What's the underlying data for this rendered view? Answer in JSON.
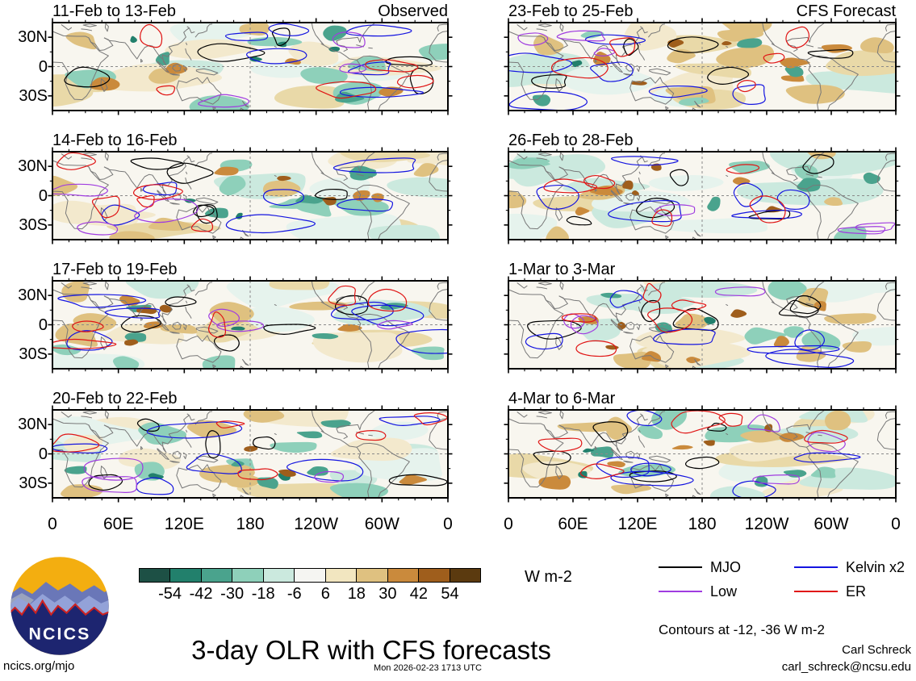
{
  "figure": {
    "title": "3-day OLR with CFS forecasts",
    "website": "ncics.org/mjo",
    "timestamp": "Mon 2026-02-23 1713 UTC",
    "author": "Carl Schreck",
    "email": "carl_schreck@ncsu.edu",
    "logo_text": "NCICS"
  },
  "columns": [
    {
      "label": "Observed"
    },
    {
      "label": "CFS Forecast"
    }
  ],
  "panels": [
    {
      "date_range": "11-Feb to 13-Feb",
      "column": "Observed"
    },
    {
      "date_range": "23-Feb to 25-Feb",
      "column": "CFS Forecast"
    },
    {
      "date_range": "14-Feb to 16-Feb",
      "column": "Observed"
    },
    {
      "date_range": "26-Feb to 28-Feb",
      "column": "CFS Forecast"
    },
    {
      "date_range": "17-Feb to 19-Feb",
      "column": "Observed"
    },
    {
      "date_range": "1-Mar to 3-Mar",
      "column": "CFS Forecast"
    },
    {
      "date_range": "20-Feb to 22-Feb",
      "column": "Observed"
    },
    {
      "date_range": "4-Mar to 6-Mar",
      "column": "CFS Forecast"
    }
  ],
  "axes": {
    "x_ticks": [
      "0",
      "60E",
      "120E",
      "180",
      "120W",
      "60W",
      "0"
    ],
    "y_ticks": [
      "30N",
      "0",
      "30S"
    ]
  },
  "colorbar": {
    "units": "W m-2",
    "boundary_labels": [
      "-54",
      "-42",
      "-30",
      "-18",
      "-6",
      "6",
      "18",
      "30",
      "42",
      "54"
    ],
    "segment_colors": [
      "#1d5045",
      "#22806c",
      "#4aa38d",
      "#8ed0ba",
      "#cbe9de",
      "#f5f5f2",
      "#f2e6c0",
      "#dfc180",
      "#ca8a3c",
      "#9f5e1c",
      "#5b3a0f"
    ]
  },
  "legend": {
    "items": [
      {
        "label": "MJO",
        "color": "#000000"
      },
      {
        "label": "Kelvin x2",
        "color": "#1414e0"
      },
      {
        "label": "Low",
        "color": "#a03ce0"
      },
      {
        "label": "ER",
        "color": "#e01414"
      }
    ],
    "note": "Contours at -12, -36 W m-2"
  },
  "chart_data": {
    "type": "heatmap",
    "title": "3-day OLR with CFS forecasts",
    "subtitle_left": "Observed",
    "subtitle_right": "CFS Forecast",
    "units": "W m-2",
    "colorbar_levels": [
      -54,
      -42,
      -30,
      -18,
      -6,
      6,
      18,
      30,
      42,
      54
    ],
    "colorbar_colors": [
      "#1d5045",
      "#22806c",
      "#4aa38d",
      "#8ed0ba",
      "#cbe9de",
      "#f5f5f2",
      "#f2e6c0",
      "#dfc180",
      "#ca8a3c",
      "#9f5e1c",
      "#5b3a0f"
    ],
    "x_axis": {
      "tick_labels": [
        "0",
        "60E",
        "120E",
        "180",
        "120W",
        "60W",
        "0"
      ],
      "range_deg_lon": [
        0,
        360
      ]
    },
    "y_axis": {
      "tick_labels": [
        "30N",
        "0",
        "30S"
      ],
      "range_deg_lat": [
        45,
        -45
      ]
    },
    "panels": [
      {
        "date_range": "11-Feb to 13-Feb",
        "kind": "observed"
      },
      {
        "date_range": "23-Feb to 25-Feb",
        "kind": "forecast"
      },
      {
        "date_range": "14-Feb to 16-Feb",
        "kind": "observed"
      },
      {
        "date_range": "26-Feb to 28-Feb",
        "kind": "forecast"
      },
      {
        "date_range": "17-Feb to 19-Feb",
        "kind": "observed"
      },
      {
        "date_range": "1-Mar to 3-Mar",
        "kind": "forecast"
      },
      {
        "date_range": "20-Feb to 22-Feb",
        "kind": "observed"
      },
      {
        "date_range": "4-Mar to 6-Mar",
        "kind": "forecast"
      }
    ],
    "contour_overlays": [
      {
        "name": "MJO",
        "color": "#000000"
      },
      {
        "name": "Kelvin x2",
        "color": "#1414e0"
      },
      {
        "name": "Low",
        "color": "#a03ce0"
      },
      {
        "name": "ER",
        "color": "#e01414"
      }
    ],
    "contour_levels_note": "Contours at -12, -36 W m-2",
    "grid": false,
    "legend_position": "bottom-right"
  }
}
